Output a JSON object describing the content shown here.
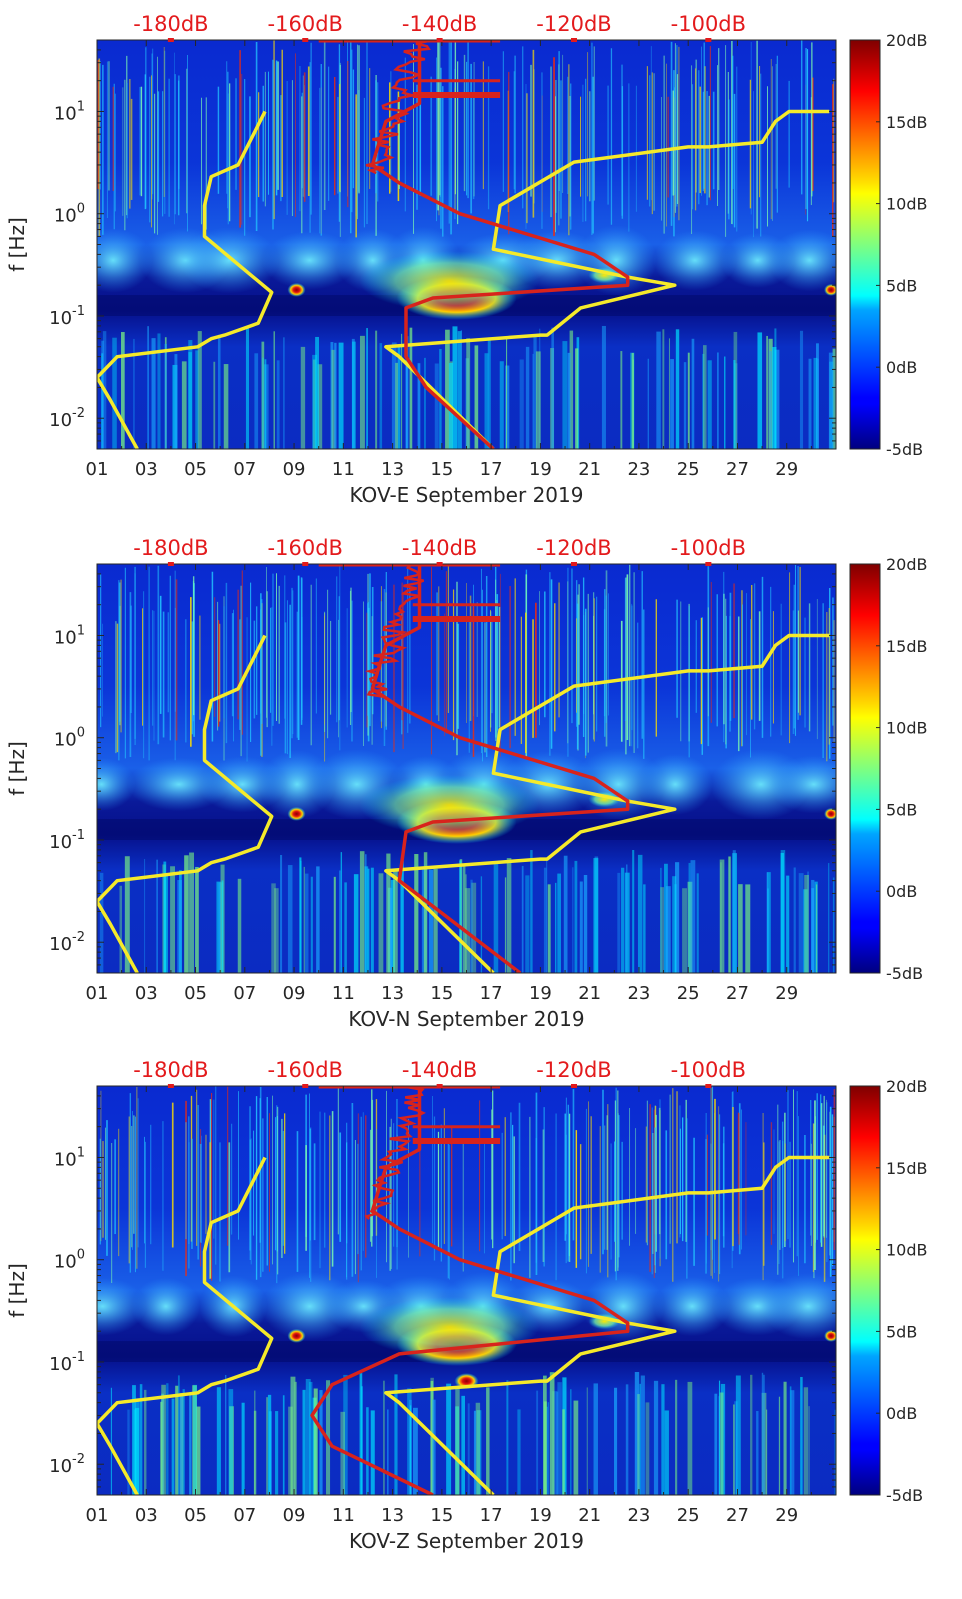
{
  "figure_title": "Spectrogram panels KOV-E, KOV-N, KOV-Z, September 2019",
  "colors": {
    "low_noise_model": "#f5ea2a",
    "high_noise_model": "#d8231c",
    "top_labels": "#e31a1c",
    "axis": "#262626"
  },
  "chart_data": [
    {
      "type": "heatmap",
      "component": "E",
      "xlabel": "KOV-E September 2019",
      "ylabel": "f [Hz]",
      "x_ticks": [
        "01",
        "03",
        "05",
        "07",
        "09",
        "11",
        "13",
        "15",
        "17",
        "19",
        "21",
        "23",
        "25",
        "27",
        "29"
      ],
      "x_tick_days": [
        1,
        3,
        5,
        7,
        9,
        11,
        13,
        15,
        17,
        19,
        21,
        23,
        25,
        27,
        29
      ],
      "xlim": [
        1,
        31
      ],
      "y_ticks": [
        "10-2",
        "10-1",
        "100",
        "101"
      ],
      "y_tick_values": [
        0.01,
        0.1,
        1,
        10
      ],
      "ylim": [
        0.005,
        50
      ],
      "y_scale": "log",
      "top_axis_labels": [
        "-180dB",
        "-160dB",
        "-140dB",
        "-120dB",
        "-100dB"
      ],
      "top_axis_db": [
        -180,
        -160,
        -140,
        -120,
        -100
      ],
      "top_axis_range": [
        -191,
        -81
      ],
      "colorbar": {
        "labels": [
          "20dB",
          "15dB",
          "10dB",
          "5dB",
          "0dB",
          "-5dB"
        ],
        "values": [
          20,
          15,
          10,
          5,
          0,
          -5
        ],
        "range": [
          -5,
          20
        ]
      },
      "series": [
        {
          "name": "low noise model (yellow)",
          "db": [
            -185,
            -189,
            -191,
            -188,
            -176,
            -174,
            -172,
            -167,
            -165,
            -175,
            -175,
            -174,
            -170,
            -166,
            -166
          ],
          "freq": [
            0.005,
            0.015,
            0.025,
            0.04,
            0.05,
            0.06,
            0.065,
            0.085,
            0.17,
            0.6,
            1.2,
            2.3,
            3.0,
            10,
            10
          ]
        },
        {
          "name": "New low noise model",
          "db": [
            -132,
            -146,
            -148,
            -125,
            -124,
            -119,
            -105,
            -112,
            -132,
            -131,
            -131,
            -120,
            -103,
            -100,
            -92,
            -90,
            -88,
            -82
          ],
          "freq": [
            0.005,
            0.04,
            0.05,
            0.065,
            0.065,
            0.12,
            0.2,
            0.24,
            0.45,
            1.2,
            1.2,
            3.2,
            4.5,
            4.5,
            5.0,
            8.0,
            10,
            10
          ]
        },
        {
          "name": "median noise (red)",
          "db": [
            -132,
            -142,
            -145,
            -145,
            -141,
            -112,
            -112,
            -117,
            -137,
            -146,
            -150,
            -149,
            -148,
            -143,
            -143
          ],
          "freq": [
            0.005,
            0.02,
            0.04,
            0.12,
            0.15,
            0.2,
            0.24,
            0.4,
            1.0,
            2.0,
            3.0,
            5.0,
            8.0,
            12,
            50
          ]
        }
      ]
    },
    {
      "type": "heatmap",
      "component": "N",
      "xlabel": "KOV-N September 2019",
      "ylabel": "f [Hz]",
      "x_ticks": [
        "01",
        "03",
        "05",
        "07",
        "09",
        "11",
        "13",
        "15",
        "17",
        "19",
        "21",
        "23",
        "25",
        "27",
        "29"
      ],
      "x_tick_days": [
        1,
        3,
        5,
        7,
        9,
        11,
        13,
        15,
        17,
        19,
        21,
        23,
        25,
        27,
        29
      ],
      "xlim": [
        1,
        31
      ],
      "y_ticks": [
        "10-2",
        "10-1",
        "100",
        "101"
      ],
      "y_tick_values": [
        0.01,
        0.1,
        1,
        10
      ],
      "ylim": [
        0.005,
        50
      ],
      "y_scale": "log",
      "top_axis_labels": [
        "-180dB",
        "-160dB",
        "-140dB",
        "-120dB",
        "-100dB"
      ],
      "top_axis_db": [
        -180,
        -160,
        -140,
        -120,
        -100
      ],
      "top_axis_range": [
        -191,
        -81
      ],
      "colorbar": {
        "labels": [
          "20dB",
          "15dB",
          "10dB",
          "5dB",
          "0dB",
          "-5dB"
        ],
        "values": [
          20,
          15,
          10,
          5,
          0,
          -5
        ],
        "range": [
          -5,
          20
        ]
      },
      "series": [
        {
          "name": "low noise model (yellow)",
          "db": [
            -185,
            -189,
            -191,
            -188,
            -176,
            -174,
            -172,
            -167,
            -165,
            -175,
            -175,
            -174,
            -170,
            -166,
            -166
          ],
          "freq": [
            0.005,
            0.015,
            0.025,
            0.04,
            0.05,
            0.06,
            0.065,
            0.085,
            0.17,
            0.6,
            1.2,
            2.3,
            3.0,
            10,
            10
          ]
        },
        {
          "name": "New low noise model",
          "db": [
            -132,
            -146,
            -148,
            -125,
            -124,
            -119,
            -105,
            -112,
            -132,
            -131,
            -131,
            -120,
            -103,
            -100,
            -92,
            -90,
            -88,
            -82
          ],
          "freq": [
            0.005,
            0.04,
            0.05,
            0.065,
            0.065,
            0.12,
            0.2,
            0.24,
            0.45,
            1.2,
            1.2,
            3.2,
            4.5,
            4.5,
            5.0,
            8.0,
            10,
            10
          ]
        },
        {
          "name": "median noise (red)",
          "db": [
            -128,
            -140,
            -146,
            -145,
            -141,
            -112,
            -112,
            -117,
            -137,
            -146,
            -150,
            -149,
            -148,
            -143,
            -143
          ],
          "freq": [
            0.005,
            0.02,
            0.04,
            0.12,
            0.15,
            0.2,
            0.24,
            0.4,
            1.0,
            2.0,
            3.0,
            5.0,
            8.0,
            12,
            50
          ]
        }
      ]
    },
    {
      "type": "heatmap",
      "component": "Z",
      "xlabel": "KOV-Z September 2019",
      "ylabel": "f [Hz]",
      "x_ticks": [
        "01",
        "03",
        "05",
        "07",
        "09",
        "11",
        "13",
        "15",
        "17",
        "19",
        "21",
        "23",
        "25",
        "27",
        "29"
      ],
      "x_tick_days": [
        1,
        3,
        5,
        7,
        9,
        11,
        13,
        15,
        17,
        19,
        21,
        23,
        25,
        27,
        29
      ],
      "xlim": [
        1,
        31
      ],
      "y_ticks": [
        "10-2",
        "10-1",
        "100",
        "101"
      ],
      "y_tick_values": [
        0.01,
        0.1,
        1,
        10
      ],
      "ylim": [
        0.005,
        50
      ],
      "y_scale": "log",
      "top_axis_labels": [
        "-180dB",
        "-160dB",
        "-140dB",
        "-120dB",
        "-100dB"
      ],
      "top_axis_db": [
        -180,
        -160,
        -140,
        -120,
        -100
      ],
      "top_axis_range": [
        -191,
        -81
      ],
      "colorbar": {
        "labels": [
          "20dB",
          "15dB",
          "10dB",
          "5dB",
          "0dB",
          "-5dB"
        ],
        "values": [
          20,
          15,
          10,
          5,
          0,
          -5
        ],
        "range": [
          -5,
          20
        ]
      },
      "series": [
        {
          "name": "low noise model (yellow)",
          "db": [
            -185,
            -189,
            -191,
            -188,
            -176,
            -174,
            -172,
            -167,
            -165,
            -175,
            -175,
            -174,
            -170,
            -166,
            -166
          ],
          "freq": [
            0.005,
            0.015,
            0.025,
            0.04,
            0.05,
            0.06,
            0.065,
            0.085,
            0.17,
            0.6,
            1.2,
            2.3,
            3.0,
            10,
            10
          ]
        },
        {
          "name": "New low noise model",
          "db": [
            -132,
            -146,
            -148,
            -125,
            -124,
            -119,
            -105,
            -112,
            -132,
            -131,
            -131,
            -120,
            -103,
            -100,
            -92,
            -90,
            -88,
            -82
          ],
          "freq": [
            0.005,
            0.04,
            0.05,
            0.065,
            0.065,
            0.12,
            0.2,
            0.24,
            0.45,
            1.2,
            1.2,
            3.2,
            4.5,
            4.5,
            5.0,
            8.0,
            10,
            10
          ]
        },
        {
          "name": "median noise (red)",
          "db": [
            -141,
            -156,
            -159,
            -156,
            -146,
            -112,
            -112,
            -117,
            -137,
            -146,
            -150,
            -149,
            -148,
            -143,
            -143
          ],
          "freq": [
            0.005,
            0.015,
            0.03,
            0.06,
            0.12,
            0.2,
            0.24,
            0.4,
            1.0,
            2.0,
            3.0,
            5.0,
            8.0,
            12,
            50
          ]
        }
      ]
    }
  ]
}
